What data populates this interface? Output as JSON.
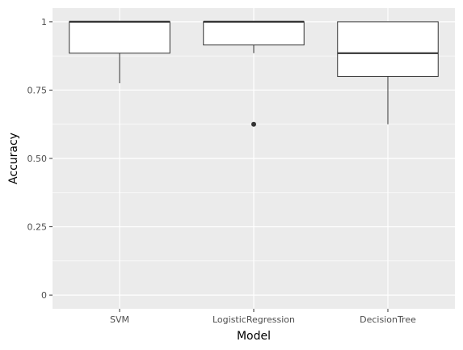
{
  "chart_data": {
    "type": "box",
    "title": "",
    "xlabel": "Model",
    "ylabel": "Accuracy",
    "ylim": [
      -0.05,
      1.05
    ],
    "y_ticks": [
      0,
      0.25,
      0.5,
      0.75,
      1
    ],
    "y_tick_labels": [
      "0",
      "0.25",
      "0.50",
      "0.75",
      "1"
    ],
    "grid": true,
    "legend": "none",
    "colors": {
      "panel_background": "#ebebeb",
      "grid_major": "#ffffff",
      "box_fill": "#ffffff",
      "box_stroke": "#333333",
      "outlier": "#333333",
      "axis_text": "#4d4d4d",
      "axis_title": "#000000"
    },
    "categories": [
      "SVM",
      "LogisticRegression",
      "DecisionTree"
    ],
    "boxes": [
      {
        "category": "SVM",
        "whisker_low": 0.775,
        "q1": 0.885,
        "median": 1.0,
        "q3": 1.0,
        "whisker_high": 1.0,
        "outliers": []
      },
      {
        "category": "LogisticRegression",
        "whisker_low": 0.885,
        "q1": 0.915,
        "median": 1.0,
        "q3": 1.0,
        "whisker_high": 1.0,
        "outliers": [
          0.625
        ]
      },
      {
        "category": "DecisionTree",
        "whisker_low": 0.625,
        "q1": 0.8,
        "median": 0.885,
        "q3": 1.0,
        "whisker_high": 1.0,
        "outliers": []
      }
    ]
  }
}
